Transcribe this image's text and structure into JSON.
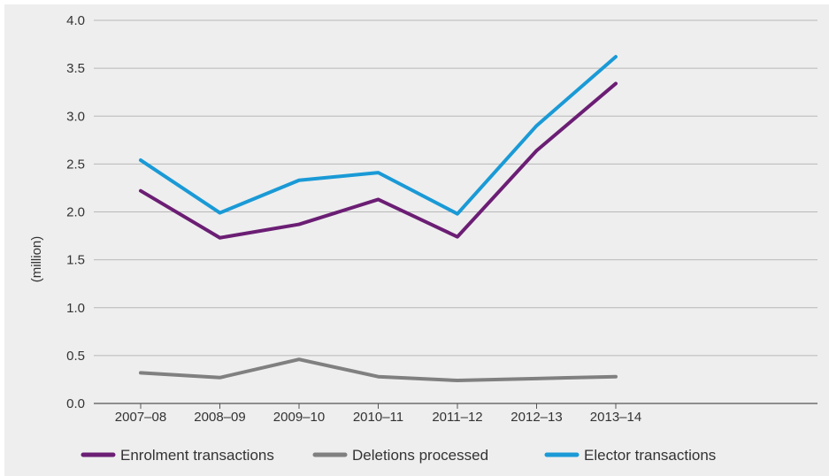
{
  "chart_data": {
    "type": "line",
    "title": "",
    "xlabel": "",
    "ylabel": "(million)",
    "categories": [
      "2007–08",
      "2008–09",
      "2009–10",
      "2010–11",
      "2011–12",
      "2012–13",
      "2013–14"
    ],
    "ylim": [
      0,
      4.0
    ],
    "yticks": [
      "0.0",
      "0.5",
      "1.0",
      "1.5",
      "2.0",
      "2.5",
      "3.0",
      "3.5",
      "4.0"
    ],
    "grid": "horizontal",
    "legend_position": "bottom",
    "series": [
      {
        "name": "Enrolment transactions",
        "color": "#6b1e74",
        "values": [
          2.22,
          1.73,
          1.87,
          2.13,
          1.74,
          2.64,
          3.34
        ]
      },
      {
        "name": "Deletions processed",
        "color": "#808080",
        "values": [
          0.32,
          0.27,
          0.46,
          0.28,
          0.24,
          0.26,
          0.28
        ]
      },
      {
        "name": "Elector transactions",
        "color": "#1a9ad6",
        "values": [
          2.54,
          1.99,
          2.33,
          2.41,
          1.98,
          2.9,
          3.62
        ]
      }
    ]
  }
}
